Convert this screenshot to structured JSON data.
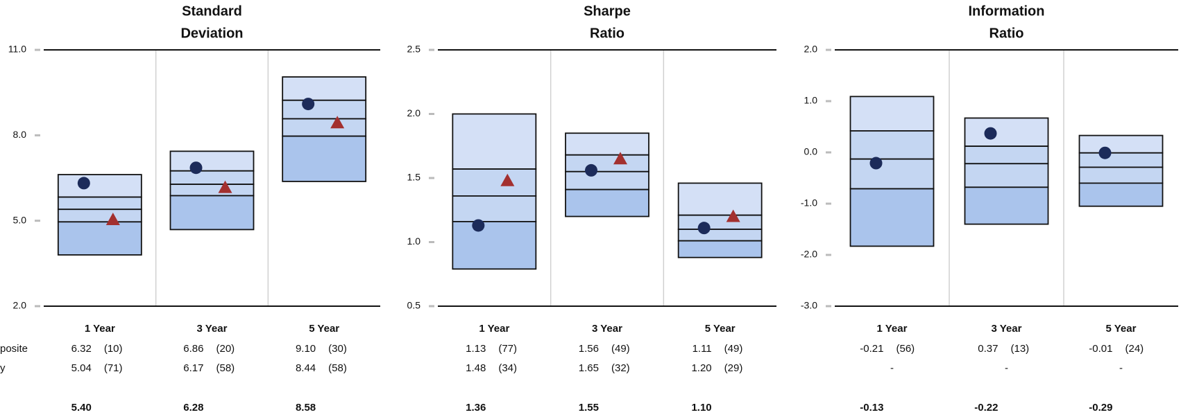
{
  "row_labels": [
    "posite",
    "y"
  ],
  "chart_data": [
    {
      "type": "floating-box",
      "title": [
        "Standard",
        "Deviation"
      ],
      "categories": [
        "1 Year",
        "3 Year",
        "5 Year"
      ],
      "ylim": [
        2,
        11
      ],
      "yticks": [
        {
          "value": 2,
          "label": "2.0"
        },
        {
          "value": 5,
          "label": "5.0"
        },
        {
          "value": 8,
          "label": "8.0"
        },
        {
          "value": 11,
          "label": "11.0"
        }
      ],
      "boxes": {
        "high": [
          6.62,
          7.44,
          10.05
        ],
        "upper": [
          5.83,
          6.75,
          9.23
        ],
        "lower": [
          4.96,
          5.88,
          7.97
        ],
        "low": [
          3.8,
          4.69,
          6.38
        ]
      },
      "median": {
        "values": [
          5.4,
          6.28,
          8.58
        ],
        "value_labels": [
          "5.40",
          "6.28",
          "8.58"
        ]
      },
      "series": [
        {
          "name": "posite",
          "marker": "circle",
          "color": "#1c2b5a",
          "values": [
            6.32,
            6.86,
            9.1
          ],
          "value_labels": [
            "6.32",
            "6.86",
            "9.10"
          ],
          "ranks": [
            "(10)",
            "(20)",
            "(30)"
          ]
        },
        {
          "name": "y",
          "marker": "triangle",
          "color": "#a3302f",
          "values": [
            5.04,
            6.17,
            8.44
          ],
          "value_labels": [
            "5.04",
            "6.17",
            "8.44"
          ],
          "ranks": [
            "(71)",
            "(58)",
            "(58)"
          ]
        }
      ]
    },
    {
      "type": "floating-box",
      "title": [
        "Sharpe",
        "Ratio"
      ],
      "categories": [
        "1 Year",
        "3 Year",
        "5 Year"
      ],
      "ylim": [
        0.5,
        2.5
      ],
      "yticks": [
        0.5,
        {
          "value": 1,
          "label": "1.0"
        },
        1.5,
        {
          "value": 2,
          "label": "2.0"
        },
        2.5
      ],
      "boxes": {
        "high": [
          2.0,
          1.85,
          1.46
        ],
        "upper": [
          1.57,
          1.68,
          1.21
        ],
        "lower": [
          1.16,
          1.41,
          1.01
        ],
        "low": [
          0.79,
          1.2,
          0.88
        ]
      },
      "median": {
        "values": [
          1.36,
          1.55,
          1.1
        ],
        "value_labels": [
          "1.36",
          "1.55",
          "1.10"
        ]
      },
      "series": [
        {
          "name": "posite",
          "marker": "circle",
          "color": "#1c2b5a",
          "values": [
            1.13,
            1.56,
            1.11
          ],
          "value_labels": [
            "1.13",
            "1.56",
            "1.11"
          ],
          "ranks": [
            "(77)",
            "(49)",
            "(49)"
          ]
        },
        {
          "name": "y",
          "marker": "triangle",
          "color": "#a3302f",
          "values": [
            1.48,
            1.65,
            1.2
          ],
          "value_labels": [
            "1.48",
            "1.65",
            "1.20"
          ],
          "ranks": [
            "(34)",
            "(32)",
            "(29)"
          ]
        }
      ]
    },
    {
      "type": "floating-box",
      "title": [
        "Information",
        "Ratio"
      ],
      "categories": [
        "1 Year",
        "3 Year",
        "5 Year"
      ],
      "ylim": [
        -3,
        2
      ],
      "yticks": [
        {
          "value": -3,
          "label": "-3.0"
        },
        {
          "value": -2,
          "label": "-2.0"
        },
        {
          "value": -1,
          "label": "-1.0"
        },
        {
          "value": 0,
          "label": "0.0"
        },
        {
          "value": 1,
          "label": "1.0"
        },
        {
          "value": 2,
          "label": "2.0"
        }
      ],
      "boxes": {
        "high": [
          1.09,
          0.67,
          0.33
        ],
        "upper": [
          0.42,
          0.12,
          -0.01
        ],
        "lower": [
          -0.71,
          -0.68,
          -0.6
        ],
        "low": [
          -1.83,
          -1.4,
          -1.05
        ]
      },
      "median": {
        "values": [
          -0.13,
          -0.22,
          -0.29
        ],
        "value_labels": [
          "-0.13",
          "-0.22",
          "-0.29"
        ]
      },
      "series": [
        {
          "name": "posite",
          "marker": "circle",
          "color": "#1c2b5a",
          "values": [
            -0.21,
            0.37,
            -0.01
          ],
          "value_labels": [
            "-0.21",
            "0.37",
            "-0.01"
          ],
          "ranks": [
            "(56)",
            "(13)",
            "(24)"
          ]
        },
        {
          "name": "y",
          "marker": "triangle",
          "color": "#a3302f",
          "values": [
            null,
            null,
            null
          ],
          "value_labels": [
            "-",
            "-",
            "-"
          ],
          "ranks": [
            null,
            null,
            null
          ]
        }
      ]
    }
  ],
  "band_colors": [
    "#d4e0f6",
    "#c4d6f2",
    "#c4d6f2",
    "#aac4ec"
  ]
}
